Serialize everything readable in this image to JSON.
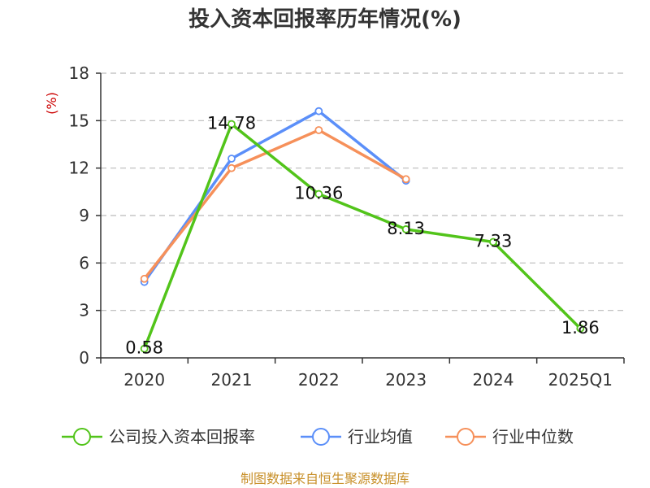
{
  "colors": {
    "company": "#52c41a",
    "industry_avg": "#5b8ff9",
    "industry_median": "#f6905a",
    "axis": "#333333",
    "grid": "#bbbbbb",
    "source": "#c8902a",
    "unit": "#cc0000"
  },
  "chart_data": {
    "type": "line",
    "title": "投入资本回报率历年情况(%)",
    "unit_label": "(%)",
    "categories": [
      "2020",
      "2021",
      "2022",
      "2023",
      "2024",
      "2025Q1"
    ],
    "ylim": [
      0,
      18
    ],
    "yticks": [
      0,
      3,
      6,
      9,
      12,
      15,
      18
    ],
    "grid": "horizontal dashed",
    "legend_position": "bottom",
    "series": [
      {
        "name": "公司投入资本回报率",
        "key": "company",
        "values": [
          0.58,
          14.78,
          10.36,
          8.13,
          7.33,
          1.86
        ],
        "labels": [
          "0.58",
          "14.78",
          "10.36",
          "8.13",
          "7.33",
          "1.86"
        ]
      },
      {
        "name": "行业均值",
        "key": "industry_avg",
        "values": [
          4.8,
          12.6,
          15.6,
          11.2,
          null,
          null
        ]
      },
      {
        "name": "行业中位数",
        "key": "industry_median",
        "values": [
          5.0,
          12.0,
          14.4,
          11.3,
          null,
          null
        ]
      }
    ]
  },
  "source_text": "制图数据来自恒生聚源数据库"
}
